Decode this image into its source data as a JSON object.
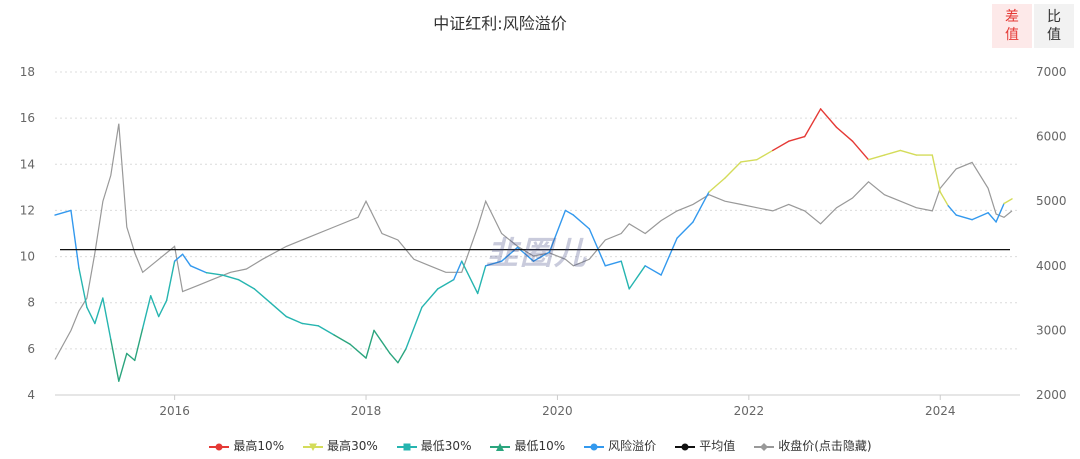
{
  "toggles": {
    "diff": {
      "line1": "差",
      "line2": "值"
    },
    "ratio": {
      "line1": "比",
      "line2": "值"
    }
  },
  "watermark": "韭圈儿",
  "chart_data": {
    "type": "line",
    "title": "中证红利:风险溢价",
    "x_range": [
      "2014-10",
      "2024-10"
    ],
    "x_ticks": [
      "2016",
      "2018",
      "2020",
      "2022",
      "2024"
    ],
    "y_left": {
      "range": [
        4,
        18
      ],
      "ticks": [
        "4",
        "6",
        "8",
        "10",
        "12",
        "14",
        "16",
        "18"
      ]
    },
    "y_right": {
      "range": [
        2000,
        7000
      ],
      "ticks": [
        "2000",
        "3000",
        "4000",
        "5000",
        "6000",
        "7000"
      ]
    },
    "grid": "horizontal dotted",
    "legend_position": "bottom",
    "legend": [
      "最高10%",
      "最高30%",
      "最低30%",
      "最低10%",
      "风险溢价",
      "平均值",
      "收盘价(点击隐藏)"
    ],
    "colors": {
      "top10": "#e53935",
      "top30": "#d4dc5a",
      "low30": "#26b5b0",
      "low10": "#2ba57e",
      "premium": "#3399ee",
      "average": "#111111",
      "close": "#999999"
    },
    "thresholds": {
      "top10": 14.6,
      "top30": 12.3,
      "low30": 9.3,
      "low10": 6.6
    },
    "average": 10.3,
    "risk_premium": [
      [
        "2014-10",
        11.8
      ],
      [
        "2014-12",
        12.0
      ],
      [
        "2015-01",
        9.5
      ],
      [
        "2015-02",
        7.8
      ],
      [
        "2015-03",
        7.1
      ],
      [
        "2015-04",
        8.2
      ],
      [
        "2015-05",
        6.4
      ],
      [
        "2015-06",
        4.6
      ],
      [
        "2015-07",
        5.8
      ],
      [
        "2015-08",
        5.5
      ],
      [
        "2015-09",
        6.9
      ],
      [
        "2015-10",
        8.3
      ],
      [
        "2015-11",
        7.4
      ],
      [
        "2015-12",
        8.1
      ],
      [
        "2016-01",
        9.8
      ],
      [
        "2016-02",
        10.1
      ],
      [
        "2016-03",
        9.6
      ],
      [
        "2016-05",
        9.3
      ],
      [
        "2016-07",
        9.2
      ],
      [
        "2016-09",
        9.0
      ],
      [
        "2016-11",
        8.6
      ],
      [
        "2017-01",
        8.0
      ],
      [
        "2017-03",
        7.4
      ],
      [
        "2017-05",
        7.1
      ],
      [
        "2017-07",
        7.0
      ],
      [
        "2017-09",
        6.6
      ],
      [
        "2017-11",
        6.2
      ],
      [
        "2018-01",
        5.6
      ],
      [
        "2018-02",
        6.8
      ],
      [
        "2018-04",
        5.8
      ],
      [
        "2018-05",
        5.4
      ],
      [
        "2018-06",
        6.0
      ],
      [
        "2018-08",
        7.8
      ],
      [
        "2018-10",
        8.6
      ],
      [
        "2018-12",
        9.0
      ],
      [
        "2019-01",
        9.8
      ],
      [
        "2019-03",
        8.4
      ],
      [
        "2019-04",
        9.6
      ],
      [
        "2019-06",
        9.8
      ],
      [
        "2019-08",
        10.4
      ],
      [
        "2019-10",
        9.8
      ],
      [
        "2019-12",
        10.2
      ],
      [
        "2020-02",
        12.0
      ],
      [
        "2020-03",
        11.8
      ],
      [
        "2020-05",
        11.2
      ],
      [
        "2020-07",
        9.6
      ],
      [
        "2020-09",
        9.8
      ],
      [
        "2020-10",
        8.6
      ],
      [
        "2020-12",
        9.6
      ],
      [
        "2021-02",
        9.2
      ],
      [
        "2021-04",
        10.8
      ],
      [
        "2021-06",
        11.5
      ],
      [
        "2021-08",
        12.8
      ],
      [
        "2021-10",
        13.4
      ],
      [
        "2021-12",
        14.1
      ],
      [
        "2022-02",
        14.2
      ],
      [
        "2022-04",
        14.6
      ],
      [
        "2022-06",
        15.0
      ],
      [
        "2022-08",
        15.2
      ],
      [
        "2022-10",
        16.4
      ],
      [
        "2022-12",
        15.6
      ],
      [
        "2023-02",
        15.0
      ],
      [
        "2023-04",
        14.2
      ],
      [
        "2023-06",
        14.4
      ],
      [
        "2023-08",
        14.6
      ],
      [
        "2023-10",
        14.4
      ],
      [
        "2023-12",
        14.4
      ],
      [
        "2024-01",
        12.8
      ],
      [
        "2024-02",
        12.2
      ],
      [
        "2024-03",
        11.8
      ],
      [
        "2024-05",
        11.6
      ],
      [
        "2024-07",
        11.9
      ],
      [
        "2024-08",
        11.5
      ],
      [
        "2024-09",
        12.3
      ],
      [
        "2024-10",
        12.5
      ]
    ],
    "close_price": [
      [
        "2014-10",
        2550
      ],
      [
        "2014-12",
        3000
      ],
      [
        "2015-01",
        3300
      ],
      [
        "2015-02",
        3500
      ],
      [
        "2015-03",
        4200
      ],
      [
        "2015-04",
        5000
      ],
      [
        "2015-05",
        5400
      ],
      [
        "2015-06",
        6200
      ],
      [
        "2015-07",
        4600
      ],
      [
        "2015-08",
        4200
      ],
      [
        "2015-09",
        3900
      ],
      [
        "2015-11",
        4100
      ],
      [
        "2016-01",
        4300
      ],
      [
        "2016-02",
        3600
      ],
      [
        "2016-04",
        3700
      ],
      [
        "2016-06",
        3800
      ],
      [
        "2016-08",
        3900
      ],
      [
        "2016-10",
        3950
      ],
      [
        "2016-12",
        4100
      ],
      [
        "2017-03",
        4300
      ],
      [
        "2017-06",
        4450
      ],
      [
        "2017-09",
        4600
      ],
      [
        "2017-12",
        4750
      ],
      [
        "2018-01",
        5000
      ],
      [
        "2018-03",
        4500
      ],
      [
        "2018-05",
        4400
      ],
      [
        "2018-07",
        4100
      ],
      [
        "2018-09",
        4000
      ],
      [
        "2018-11",
        3900
      ],
      [
        "2019-01",
        3900
      ],
      [
        "2019-03",
        4600
      ],
      [
        "2019-04",
        5000
      ],
      [
        "2019-06",
        4500
      ],
      [
        "2019-08",
        4300
      ],
      [
        "2019-10",
        4150
      ],
      [
        "2019-12",
        4200
      ],
      [
        "2020-02",
        4100
      ],
      [
        "2020-03",
        4000
      ],
      [
        "2020-05",
        4100
      ],
      [
        "2020-07",
        4400
      ],
      [
        "2020-09",
        4500
      ],
      [
        "2020-10",
        4650
      ],
      [
        "2020-12",
        4500
      ],
      [
        "2021-02",
        4700
      ],
      [
        "2021-04",
        4850
      ],
      [
        "2021-06",
        4950
      ],
      [
        "2021-08",
        5100
      ],
      [
        "2021-10",
        5000
      ],
      [
        "2021-12",
        4950
      ],
      [
        "2022-02",
        4900
      ],
      [
        "2022-04",
        4850
      ],
      [
        "2022-06",
        4950
      ],
      [
        "2022-08",
        4850
      ],
      [
        "2022-10",
        4650
      ],
      [
        "2022-12",
        4900
      ],
      [
        "2023-02",
        5050
      ],
      [
        "2023-04",
        5300
      ],
      [
        "2023-06",
        5100
      ],
      [
        "2023-08",
        5000
      ],
      [
        "2023-10",
        4900
      ],
      [
        "2023-12",
        4850
      ],
      [
        "2024-01",
        5200
      ],
      [
        "2024-03",
        5500
      ],
      [
        "2024-05",
        5600
      ],
      [
        "2024-07",
        5200
      ],
      [
        "2024-08",
        4800
      ],
      [
        "2024-09",
        4750
      ],
      [
        "2024-10",
        4850
      ]
    ]
  }
}
